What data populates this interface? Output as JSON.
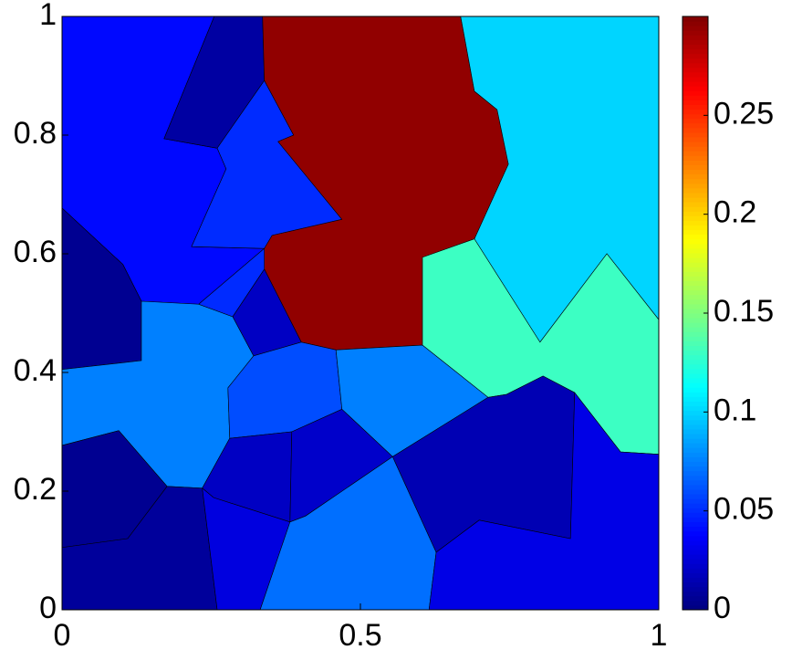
{
  "chart_data": {
    "type": "voronoi",
    "colormap": "jet",
    "clim": [
      0,
      0.3
    ],
    "xlim": [
      0,
      1
    ],
    "ylim": [
      0,
      1
    ],
    "xticks": [
      0,
      0.5,
      1
    ],
    "yticks": [
      0,
      0.2,
      0.4,
      0.6,
      0.8,
      1
    ],
    "cbar_ticks": [
      0,
      0.05,
      0.1,
      0.15,
      0.2,
      0.25
    ],
    "cells": [
      {
        "value": 0.04,
        "points": [
          [
            0,
            1
          ],
          [
            0.255,
            1
          ],
          [
            0.171,
            0.794
          ],
          [
            0.26,
            0.778
          ],
          [
            0.275,
            0.743
          ],
          [
            0.217,
            0.612
          ],
          [
            0.339,
            0.609
          ],
          [
            0.229,
            0.515
          ],
          [
            0.133,
            0.52
          ],
          [
            0.102,
            0.582
          ],
          [
            0,
            0.677
          ]
        ]
      },
      {
        "value": 0.01,
        "points": [
          [
            0.255,
            1
          ],
          [
            0.336,
            1
          ],
          [
            0.339,
            0.892
          ],
          [
            0.26,
            0.778
          ],
          [
            0.171,
            0.794
          ]
        ]
      },
      {
        "value": 0.05,
        "points": [
          [
            0.339,
            0.892
          ],
          [
            0.388,
            0.8
          ],
          [
            0.362,
            0.789
          ],
          [
            0.469,
            0.658
          ],
          [
            0.352,
            0.631
          ],
          [
            0.339,
            0.609
          ],
          [
            0.217,
            0.612
          ],
          [
            0.275,
            0.743
          ],
          [
            0.26,
            0.778
          ]
        ]
      },
      {
        "value": 0.295,
        "points": [
          [
            0.336,
            1
          ],
          [
            0.668,
            1
          ],
          [
            0.691,
            0.874
          ],
          [
            0.729,
            0.843
          ],
          [
            0.748,
            0.751
          ],
          [
            0.691,
            0.625
          ],
          [
            0.604,
            0.594
          ],
          [
            0.604,
            0.446
          ],
          [
            0.459,
            0.438
          ],
          [
            0.401,
            0.451
          ],
          [
            0.339,
            0.574
          ],
          [
            0.339,
            0.609
          ],
          [
            0.352,
            0.631
          ],
          [
            0.469,
            0.658
          ],
          [
            0.362,
            0.789
          ],
          [
            0.388,
            0.8
          ],
          [
            0.339,
            0.892
          ]
        ]
      },
      {
        "value": 0.1,
        "points": [
          [
            0.668,
            1
          ],
          [
            1,
            1
          ],
          [
            1,
            0.489
          ],
          [
            0.913,
            0.6
          ],
          [
            0.801,
            0.451
          ],
          [
            0.691,
            0.625
          ],
          [
            0.748,
            0.751
          ],
          [
            0.729,
            0.843
          ],
          [
            0.691,
            0.874
          ]
        ]
      },
      {
        "value": 0.13,
        "points": [
          [
            0.691,
            0.625
          ],
          [
            0.801,
            0.451
          ],
          [
            0.913,
            0.6
          ],
          [
            1,
            0.489
          ],
          [
            1,
            0.262
          ],
          [
            0.936,
            0.266
          ],
          [
            0.859,
            0.366
          ],
          [
            0.806,
            0.394
          ],
          [
            0.745,
            0.363
          ],
          [
            0.714,
            0.358
          ],
          [
            0.604,
            0.446
          ],
          [
            0.604,
            0.594
          ]
        ]
      },
      {
        "value": 0.005,
        "points": [
          [
            0,
            0.677
          ],
          [
            0.102,
            0.582
          ],
          [
            0.133,
            0.52
          ],
          [
            0.133,
            0.42
          ],
          [
            0,
            0.405
          ]
        ]
      },
      {
        "value": 0.075,
        "points": [
          [
            0.133,
            0.52
          ],
          [
            0.229,
            0.515
          ],
          [
            0.286,
            0.494
          ],
          [
            0.321,
            0.428
          ],
          [
            0.278,
            0.374
          ],
          [
            0.281,
            0.289
          ],
          [
            0.235,
            0.205
          ],
          [
            0.176,
            0.208
          ],
          [
            0.095,
            0.302
          ],
          [
            0,
            0.277
          ],
          [
            0,
            0.405
          ],
          [
            0.133,
            0.42
          ]
        ]
      },
      {
        "value": 0.05,
        "points": [
          [
            0.229,
            0.515
          ],
          [
            0.339,
            0.609
          ],
          [
            0.339,
            0.574
          ],
          [
            0.286,
            0.494
          ]
        ]
      },
      {
        "value": 0.02,
        "points": [
          [
            0.286,
            0.494
          ],
          [
            0.339,
            0.574
          ],
          [
            0.401,
            0.451
          ],
          [
            0.332,
            0.431
          ],
          [
            0.321,
            0.428
          ]
        ]
      },
      {
        "value": 0.06,
        "points": [
          [
            0.321,
            0.428
          ],
          [
            0.401,
            0.451
          ],
          [
            0.459,
            0.438
          ],
          [
            0.469,
            0.338
          ],
          [
            0.385,
            0.3
          ],
          [
            0.281,
            0.289
          ],
          [
            0.278,
            0.374
          ]
        ]
      },
      {
        "value": 0.075,
        "points": [
          [
            0.459,
            0.438
          ],
          [
            0.604,
            0.446
          ],
          [
            0.714,
            0.358
          ],
          [
            0.554,
            0.258
          ],
          [
            0.469,
            0.338
          ]
        ]
      },
      {
        "value": 0.005,
        "points": [
          [
            0,
            0.277
          ],
          [
            0.095,
            0.302
          ],
          [
            0.176,
            0.208
          ],
          [
            0.11,
            0.12
          ],
          [
            0,
            0.105
          ]
        ]
      },
      {
        "value": 0.008,
        "points": [
          [
            0,
            0.105
          ],
          [
            0.11,
            0.12
          ],
          [
            0.176,
            0.208
          ],
          [
            0.235,
            0.205
          ],
          [
            0.26,
            0
          ],
          [
            0,
            0
          ]
        ]
      },
      {
        "value": 0.02,
        "points": [
          [
            0.235,
            0.205
          ],
          [
            0.281,
            0.289
          ],
          [
            0.385,
            0.3
          ],
          [
            0.382,
            0.148
          ],
          [
            0.254,
            0.189
          ]
        ]
      },
      {
        "value": 0.028,
        "points": [
          [
            0.254,
            0.189
          ],
          [
            0.382,
            0.148
          ],
          [
            0.332,
            0
          ],
          [
            0.26,
            0
          ],
          [
            0.235,
            0.205
          ]
        ]
      },
      {
        "value": 0.022,
        "points": [
          [
            0.385,
            0.3
          ],
          [
            0.469,
            0.338
          ],
          [
            0.554,
            0.258
          ],
          [
            0.408,
            0.158
          ],
          [
            0.382,
            0.148
          ]
        ]
      },
      {
        "value": 0.07,
        "points": [
          [
            0.382,
            0.148
          ],
          [
            0.408,
            0.158
          ],
          [
            0.554,
            0.258
          ],
          [
            0.627,
            0.097
          ],
          [
            0.615,
            0
          ],
          [
            0.332,
            0
          ]
        ]
      },
      {
        "value": 0.015,
        "points": [
          [
            0.554,
            0.258
          ],
          [
            0.714,
            0.358
          ],
          [
            0.745,
            0.363
          ],
          [
            0.806,
            0.394
          ],
          [
            0.859,
            0.366
          ],
          [
            0.852,
            0.12
          ],
          [
            0.699,
            0.151
          ],
          [
            0.627,
            0.097
          ]
        ]
      },
      {
        "value": 0.03,
        "points": [
          [
            0.627,
            0.097
          ],
          [
            0.699,
            0.151
          ],
          [
            0.852,
            0.12
          ],
          [
            0.859,
            0.366
          ],
          [
            0.936,
            0.266
          ],
          [
            1,
            0.262
          ],
          [
            1,
            0
          ],
          [
            0.615,
            0
          ]
        ]
      }
    ]
  }
}
